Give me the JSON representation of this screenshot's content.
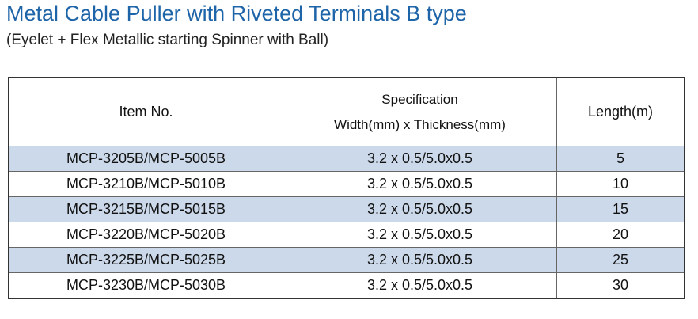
{
  "header": {
    "title": "Metal Cable Puller with Riveted Terminals B type",
    "subtitle": "(Eyelet  + Flex Metallic starting Spinner with Ball)"
  },
  "table": {
    "columns": [
      "Item No.",
      "Specification",
      "Length(m)"
    ],
    "spec_sub": "Width(mm) x Thickness(mm)",
    "rows": [
      [
        "MCP-3205B/MCP-5005B",
        "3.2 x 0.5/5.0x0.5",
        5
      ],
      [
        "MCP-3210B/MCP-5010B",
        "3.2 x 0.5/5.0x0.5",
        10
      ],
      [
        "MCP-3215B/MCP-5015B",
        "3.2 x 0.5/5.0x0.5",
        15
      ],
      [
        "MCP-3220B/MCP-5020B",
        "3.2 x 0.5/5.0x0.5",
        20
      ],
      [
        "MCP-3225B/MCP-5025B",
        "3.2 x 0.5/5.0x0.5",
        25
      ],
      [
        "MCP-3230B/MCP-5030B",
        "3.2 x 0.5/5.0x0.5",
        30
      ]
    ]
  }
}
